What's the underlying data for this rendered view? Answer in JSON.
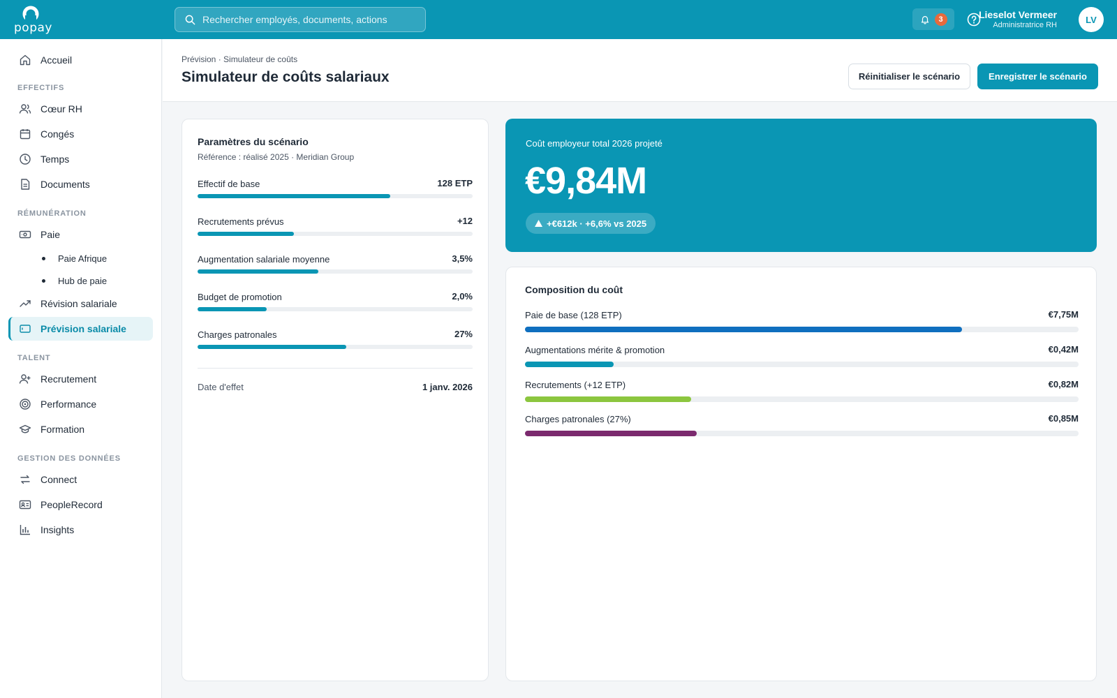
{
  "brand": {
    "logo_text": "popay"
  },
  "search": {
    "placeholder": "Rechercher employés, documents, actions"
  },
  "notifications": {
    "count": "3"
  },
  "user": {
    "name": "Lieselot Vermeer",
    "role": "Administratrice RH",
    "initials": "LV"
  },
  "sidebar": {
    "home": "Accueil",
    "sections": {
      "effectifs": "EFFECTIFS",
      "remuneration": "RÉMUNÉRATION",
      "talent": "TALENT",
      "donnees": "GESTION DES DONNÉES"
    },
    "items": {
      "coeur_rh": "Cœur RH",
      "conges": "Congés",
      "temps": "Temps",
      "documents": "Documents",
      "paie": "Paie",
      "paie_afrique": "Paie Afrique",
      "hub_paie": "Hub de paie",
      "revision": "Révision salariale",
      "prevision": "Prévision salariale",
      "recrutement": "Recrutement",
      "performance": "Performance",
      "formation": "Formation",
      "connect": "Connect",
      "peoplerecord": "PeopleRecord",
      "insights": "Insights"
    }
  },
  "header": {
    "breadcrumb": "Prévision · Simulateur de coûts",
    "title": "Simulateur de coûts salariaux",
    "reset_label": "Réinitialiser le scénario",
    "save_label": "Enregistrer le scénario"
  },
  "params": {
    "title": "Paramètres du scénario",
    "subtitle": "Référence : réalisé 2025 · Meridian Group",
    "rows": [
      {
        "label": "Effectif de base",
        "value": "128 ETP",
        "level": 0.7
      },
      {
        "label": "Recrutements prévus",
        "value": "+12",
        "level": 0.35
      },
      {
        "label": "Augmentation salariale moyenne",
        "value": "3,5%",
        "level": 0.44
      },
      {
        "label": "Budget de promotion",
        "value": "2,0%",
        "level": 0.25
      },
      {
        "label": "Charges patronales",
        "value": "27%",
        "level": 0.54
      }
    ],
    "date_label": "Date d'effet",
    "date_value": "1 janv. 2026"
  },
  "hero": {
    "label": "Coût employeur total 2026 projeté",
    "value": "€9,84M",
    "delta": "+€612k · +6,6% vs 2025"
  },
  "composition": {
    "title": "Composition du coût",
    "rows": [
      {
        "label": "Paie de base (128 ETP)",
        "value": "€7,75M",
        "level": 0.79,
        "color": "#0f6fbf"
      },
      {
        "label": "Augmentations mérite & promotion",
        "value": "€0,42M",
        "level": 0.16,
        "color": "#0a96b4"
      },
      {
        "label": "Recrutements (+12 ETP)",
        "value": "€0,82M",
        "level": 0.3,
        "color": "#8cc63f"
      },
      {
        "label": "Charges patronales (27%)",
        "value": "€0,85M",
        "level": 0.31,
        "color": "#7b2a6e"
      }
    ]
  },
  "colors": {
    "brand": "#0a96b4",
    "badge": "#e86a3c"
  }
}
